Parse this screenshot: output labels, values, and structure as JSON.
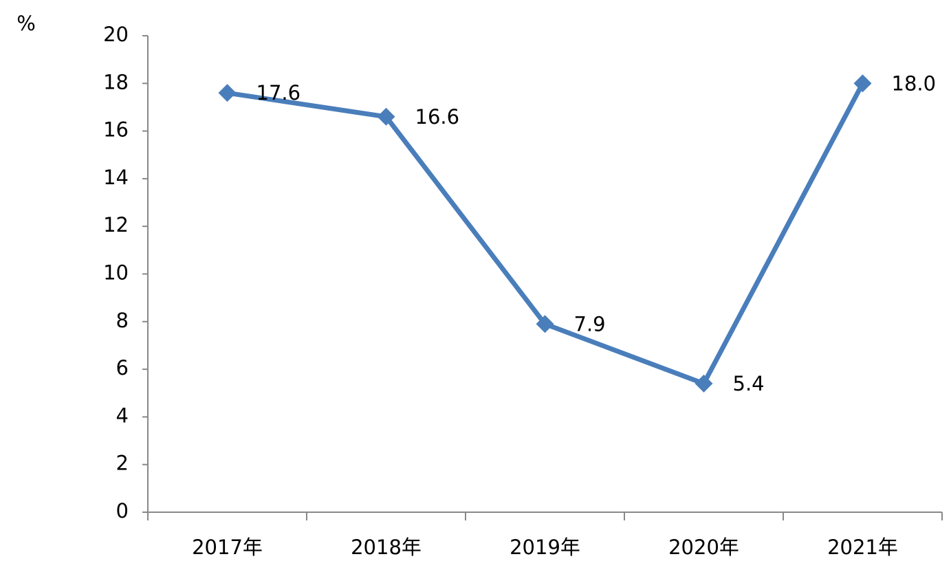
{
  "chart_data": {
    "type": "line",
    "ylabel": "%",
    "categories": [
      "2017年",
      "2018年",
      "2019年",
      "2020年",
      "2021年"
    ],
    "values": [
      17.6,
      16.6,
      7.9,
      5.4,
      18.0
    ],
    "value_labels": [
      "17.6",
      "16.6",
      "7.9",
      "5.4",
      "18.0"
    ],
    "color": "#4a7ebb",
    "ylim": [
      0,
      20
    ],
    "yticks": [
      0,
      2,
      4,
      6,
      8,
      10,
      12,
      14,
      16,
      18,
      20
    ],
    "grid": false
  }
}
